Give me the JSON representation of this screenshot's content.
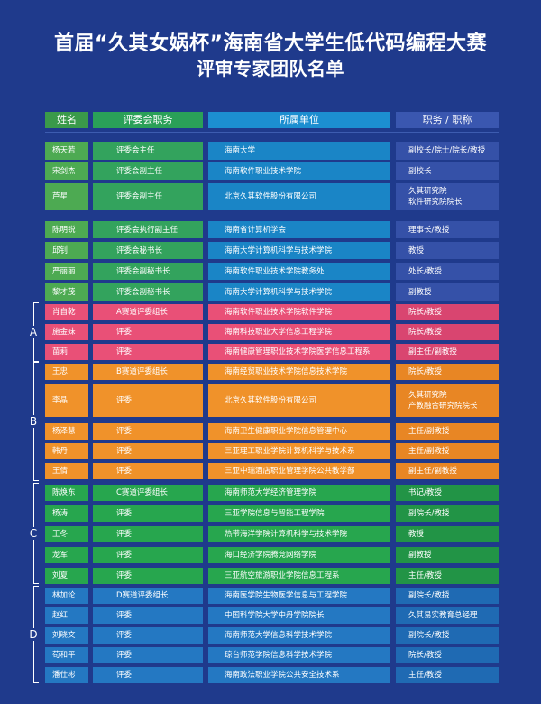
{
  "title": {
    "line1": "首届“久其女娲杯”海南省大学生低代码编程大赛",
    "line2": "评审专家团队名单"
  },
  "headers": {
    "name": "姓名",
    "role": "评委会职务",
    "unit": "所属单位",
    "title": "职务 / 职称"
  },
  "rows": [
    {
      "group": "lead",
      "name": "杨天若",
      "role": "评委会主任",
      "unit": "海南大学",
      "title": "副校长/院士/院长/教授"
    },
    {
      "group": "lead",
      "name": "宋剑杰",
      "role": "评委会副主任",
      "unit": "海南软件职业技术学院",
      "title": "副校长"
    },
    {
      "group": "lead",
      "name": "芦星",
      "role": "评委会副主任",
      "unit": "北京久其软件股份有限公司",
      "title": "久其研究院\n软件研究院院长"
    },
    {
      "group": "lead",
      "name": "陈明锐",
      "role": "评委会执行副主任",
      "unit": "海南省计算机学会",
      "title": "理事长/教授"
    },
    {
      "group": "lead",
      "name": "邱钊",
      "role": "评委会秘书长",
      "unit": "海南大学计算机科学与技术学院",
      "title": "教授"
    },
    {
      "group": "lead",
      "name": "严丽丽",
      "role": "评委会副秘书长",
      "unit": "海南软件职业技术学院教务处",
      "title": "处长/教授"
    },
    {
      "group": "lead",
      "name": "黎才茂",
      "role": "评委会副秘书长",
      "unit": "海南大学计算机科学与技术学院",
      "title": "副教授"
    },
    {
      "group": "A",
      "name": "肖自乾",
      "role": "A赛道评委组长",
      "unit": "海南软件职业技术学院软件学院",
      "title": "院长/教授"
    },
    {
      "group": "A",
      "name": "施金妹",
      "role": "评委",
      "unit": "海南科技职业大学信息工程学院",
      "title": "院长/教授"
    },
    {
      "group": "A",
      "name": "苗莉",
      "role": "评委",
      "unit": "海南健康管理职业技术学院医学信息工程系",
      "title": "副主任/副教授"
    },
    {
      "group": "B",
      "name": "王忠",
      "role": "B赛道评委组长",
      "unit": "海南经贸职业技术学院信息技术学院",
      "title": "院长/教授"
    },
    {
      "group": "B",
      "name": "李晶",
      "role": "评委",
      "unit": "北京久其软件股份有限公司",
      "title": "久其研究院\n产教融合研究院院长"
    },
    {
      "group": "B",
      "name": "杨泽慧",
      "role": "评委",
      "unit": "海南卫生健康职业学院信息管理中心",
      "title": "主任/副教授"
    },
    {
      "group": "B",
      "name": "韩丹",
      "role": "评委",
      "unit": "三亚理工职业学院计算机科学与技术系",
      "title": "主任/副教授"
    },
    {
      "group": "B",
      "name": "王倩",
      "role": "评委",
      "unit": "三亚中瑞酒店职业管理学院公共教学部",
      "title": "副主任/副教授"
    },
    {
      "group": "C",
      "name": "陈焕东",
      "role": "C赛道评委组长",
      "unit": "海南师范大学经济管理学院",
      "title": "书记/教授"
    },
    {
      "group": "C",
      "name": "杨涛",
      "role": "评委",
      "unit": "三亚学院信息与智能工程学院",
      "title": "副院长/教授"
    },
    {
      "group": "C",
      "name": "王冬",
      "role": "评委",
      "unit": "热带海洋学院计算机科学与技术学院",
      "title": "教授"
    },
    {
      "group": "C",
      "name": "龙军",
      "role": "评委",
      "unit": "海口经济学院腾竞网络学院",
      "title": "副教授"
    },
    {
      "group": "C",
      "name": "刘夏",
      "role": "评委",
      "unit": "三亚航空旅游职业学院信息工程系",
      "title": "主任/教授"
    },
    {
      "group": "D",
      "name": "林加论",
      "role": "D赛道评委组长",
      "unit": "海南医学院生物医学信息与工程学院",
      "title": "副院长/教授"
    },
    {
      "group": "D",
      "name": "赵红",
      "role": "评委",
      "unit": "中国科学院大学中丹学院院长",
      "title": "久其易实教育总经理"
    },
    {
      "group": "D",
      "name": "刘晓文",
      "role": "评委",
      "unit": "海南师范大学信息科学技术学院",
      "title": "副院长/教授"
    },
    {
      "group": "D",
      "name": "苟和平",
      "role": "评委",
      "unit": "琼台师范学院信息科学技术学院",
      "title": "院长/教授"
    },
    {
      "group": "D",
      "name": "潘仕彬",
      "role": "评委",
      "unit": "海南政法职业学院公共安全技术系",
      "title": "主任/教授"
    }
  ],
  "group_labels": [
    "A",
    "B",
    "C",
    "D"
  ],
  "colors": {
    "background": "#1f3a8c",
    "lead": "#1a85c6",
    "A": "#e95077",
    "B": "#f0922a",
    "C": "#27a64e",
    "D": "#2478c2"
  }
}
